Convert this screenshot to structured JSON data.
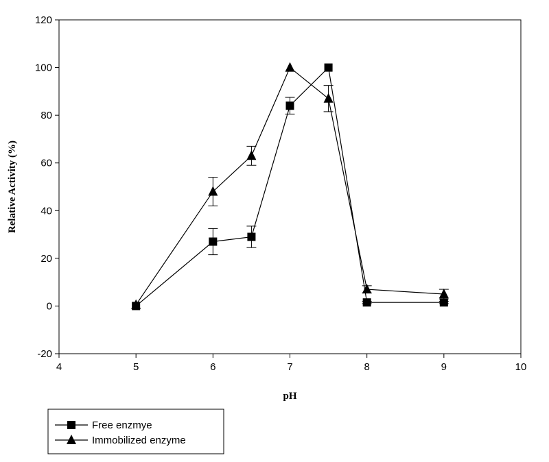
{
  "chart_data": {
    "type": "line",
    "xlabel": "pH",
    "ylabel": "Relative Activity (%)",
    "xlim": [
      4,
      10
    ],
    "ylim": [
      -20,
      120
    ],
    "xticks": [
      4,
      5,
      6,
      7,
      8,
      9,
      10
    ],
    "yticks": [
      -20,
      0,
      20,
      40,
      60,
      80,
      100,
      120
    ],
    "grid": false,
    "legend_placement": "bottom-left outside",
    "series": [
      {
        "name": "Free enzmye",
        "marker": "square",
        "color": "#000000",
        "x": [
          5,
          6,
          6.5,
          7,
          7.5,
          8,
          9
        ],
        "y": [
          0,
          27,
          29,
          84,
          100,
          1.5,
          1.5
        ],
        "error": [
          0,
          5.5,
          4.5,
          3.5,
          0,
          0.5,
          0.5
        ]
      },
      {
        "name": "Immobilized enzyme",
        "marker": "triangle",
        "color": "#000000",
        "x": [
          5,
          6,
          6.5,
          7,
          7.5,
          8,
          9
        ],
        "y": [
          0.5,
          48,
          63,
          100,
          87,
          7,
          5
        ],
        "error": [
          0,
          6,
          4,
          0,
          5.5,
          1.5,
          2
        ]
      }
    ]
  }
}
